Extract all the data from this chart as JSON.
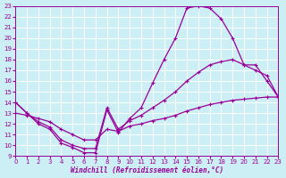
{
  "xlabel": "Windchill (Refroidissement éolien,°C)",
  "bg_color": "#cceef5",
  "line_color": "#990099",
  "xlim": [
    0,
    23
  ],
  "ylim": [
    9,
    23
  ],
  "xticks": [
    0,
    1,
    2,
    3,
    4,
    5,
    6,
    7,
    8,
    9,
    10,
    11,
    12,
    13,
    14,
    15,
    16,
    17,
    18,
    19,
    20,
    21,
    22,
    23
  ],
  "yticks": [
    9,
    10,
    11,
    12,
    13,
    14,
    15,
    16,
    17,
    18,
    19,
    20,
    21,
    22,
    23
  ],
  "curve1_x": [
    0,
    1,
    2,
    3,
    4,
    5,
    6,
    7,
    8,
    9,
    10,
    11,
    12,
    13,
    14,
    15,
    16,
    17,
    18,
    19,
    20,
    21,
    22,
    23
  ],
  "curve1_y": [
    14,
    13,
    12,
    11.5,
    10.2,
    9.8,
    9.3,
    9.3,
    13.3,
    11.2,
    12.5,
    13.5,
    15.8,
    18.0,
    20.0,
    22.8,
    23.0,
    22.8,
    21.8,
    20.0,
    17.5,
    17.0,
    16.5,
    14.5
  ],
  "curve2_x": [
    0,
    1,
    2,
    3,
    4,
    5,
    6,
    7,
    8,
    9,
    10,
    11,
    12,
    13,
    14,
    15,
    16,
    17,
    18,
    19,
    20,
    21,
    22,
    23
  ],
  "curve2_y": [
    14,
    13.0,
    12.2,
    11.7,
    10.5,
    10.0,
    9.7,
    9.7,
    13.5,
    11.5,
    12.3,
    12.8,
    13.5,
    14.2,
    15.0,
    16.0,
    16.8,
    17.5,
    17.8,
    18.0,
    17.5,
    17.5,
    16.0,
    14.5
  ],
  "curve3_x": [
    0,
    1,
    2,
    3,
    4,
    5,
    6,
    7,
    8,
    9,
    10,
    11,
    12,
    13,
    14,
    15,
    16,
    17,
    18,
    19,
    20,
    21,
    22,
    23
  ],
  "curve3_y": [
    13,
    12.8,
    12.5,
    12.2,
    11.5,
    11.0,
    10.5,
    10.5,
    11.5,
    11.3,
    11.8,
    12.0,
    12.3,
    12.5,
    12.8,
    13.2,
    13.5,
    13.8,
    14.0,
    14.2,
    14.3,
    14.4,
    14.5,
    14.5
  ]
}
